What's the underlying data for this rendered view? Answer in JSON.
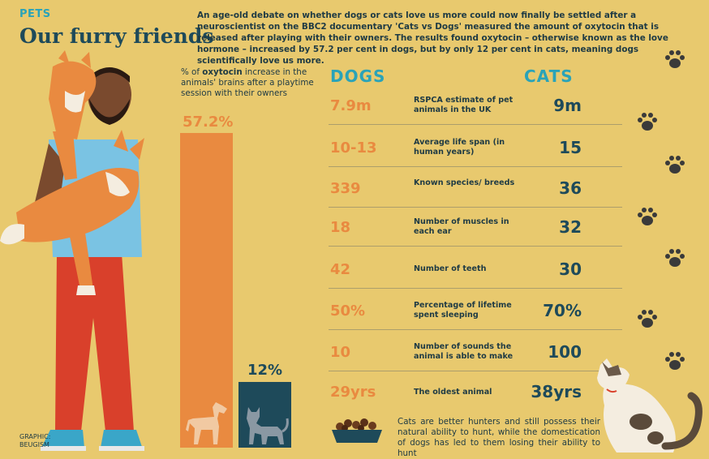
{
  "header": {
    "kicker": "PETS",
    "title": "Our furry friends",
    "intro": "An age-old debate on whether dogs or cats love us more could now finally be settled after a neuroscientist on the BBC2 documentary 'Cats vs Dogs' measured the amount of oxytocin that is released after playing with their owners. The results found oxytocin – otherwise known as the love hormone – increased by 57.2 per cent in dogs, but by only 12 per cent in cats, meaning dogs scientifically love us more."
  },
  "chart_data": {
    "type": "bar",
    "caption_pre": "% of ",
    "caption_bold": "oxytocin",
    "caption_post": " increase in the animals' brains after a playtime session with their owners",
    "categories": [
      "Dogs",
      "Cats"
    ],
    "values": [
      57.2,
      12
    ],
    "value_labels": [
      "57.2%",
      "12%"
    ],
    "colors": [
      "#e98a40",
      "#1e4a5a"
    ]
  },
  "comparison": {
    "dogs_header": "DOGS",
    "cats_header": "CATS",
    "rows": [
      {
        "dogs": "7.9m",
        "label": "RSPCA estimate of pet animals in the UK",
        "cats": "9m"
      },
      {
        "dogs": "10-13",
        "label": "Average life span (in human years)",
        "cats": "15"
      },
      {
        "dogs": "339",
        "label": "Known species/ breeds",
        "cats": "36"
      },
      {
        "dogs": "18",
        "label": "Number of muscles in each ear",
        "cats": "32"
      },
      {
        "dogs": "42",
        "label": "Number of teeth",
        "cats": "30"
      },
      {
        "dogs": "50%",
        "label": "Percentage of lifetime spent sleeping",
        "cats": "70%"
      },
      {
        "dogs": "10",
        "label": "Number of sounds the animal is able to make",
        "cats": "100"
      },
      {
        "dogs": "29yrs",
        "label": "The oldest animal",
        "cats": "38yrs"
      }
    ]
  },
  "footer_note": "Cats are better hunters and still possess their natural ability to hunt, while the domestication of dogs has led to them losing their ability to hunt",
  "credit": {
    "line1": "GRAPHIC:",
    "line2": "BEUGISM"
  },
  "colors": {
    "background": "#e8c96e",
    "dogs": "#e98a40",
    "cats": "#1e4a5a",
    "accent": "#2aa3b8"
  }
}
